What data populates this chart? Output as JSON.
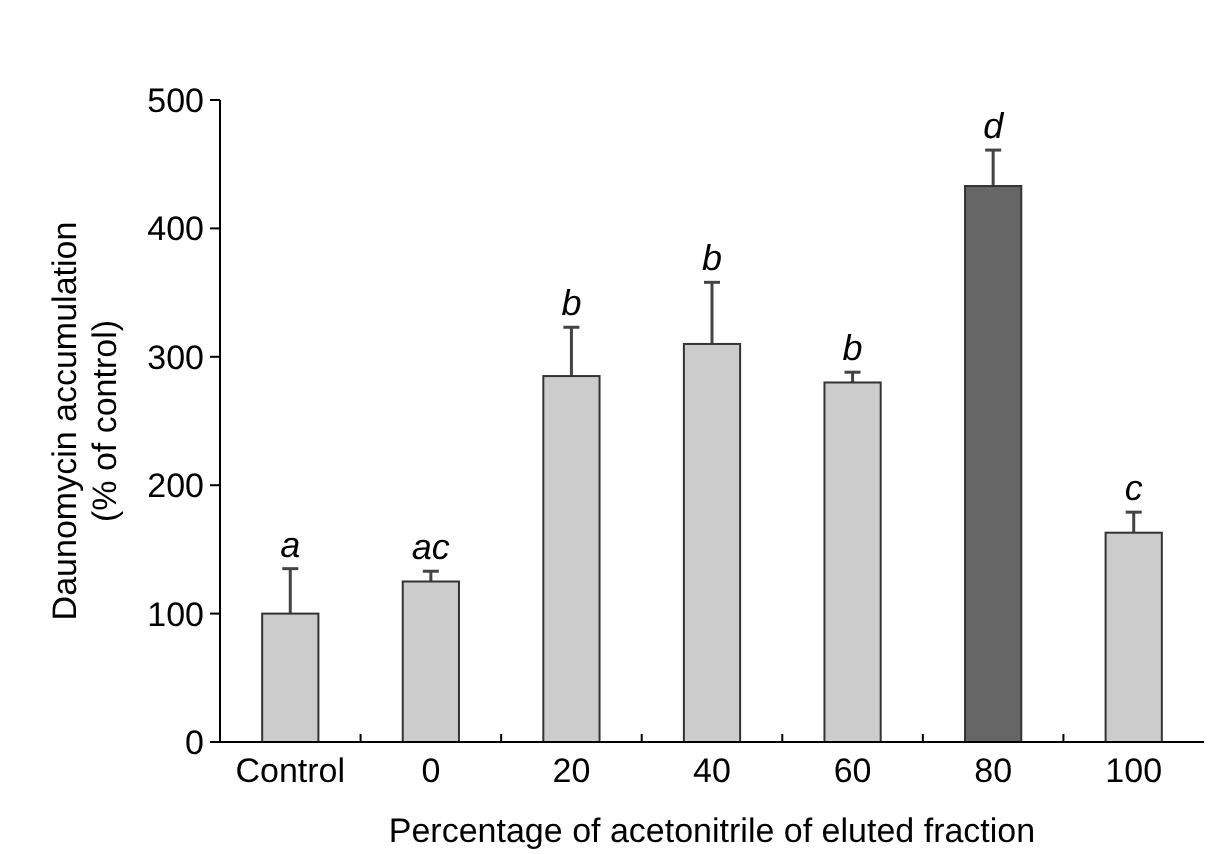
{
  "chart_data": {
    "type": "bar",
    "xlabel": "Percentage of acetonitrile of eluted fraction",
    "ylabel": "Daunomycin accumulation\n(% of control)",
    "categories": [
      "Control",
      "0",
      "20",
      "40",
      "60",
      "80",
      "100"
    ],
    "values": [
      100,
      125,
      285,
      310,
      280,
      433,
      163
    ],
    "colors": [
      "#cccccc",
      "#cccccc",
      "#cccccc",
      "#cccccc",
      "#cccccc",
      "#666666",
      "#cccccc"
    ],
    "errors": [
      [
        100,
        135
      ],
      [
        125,
        133
      ],
      [
        285,
        323
      ],
      [
        310,
        358
      ],
      [
        280,
        288
      ],
      [
        433,
        461
      ],
      [
        163,
        179
      ]
    ],
    "ylim": [
      0,
      500
    ],
    "yticks": [
      0,
      100,
      200,
      300,
      400,
      500
    ],
    "annotations": [
      "a",
      "ac",
      "b",
      "b",
      "b",
      "d",
      "c"
    ]
  }
}
